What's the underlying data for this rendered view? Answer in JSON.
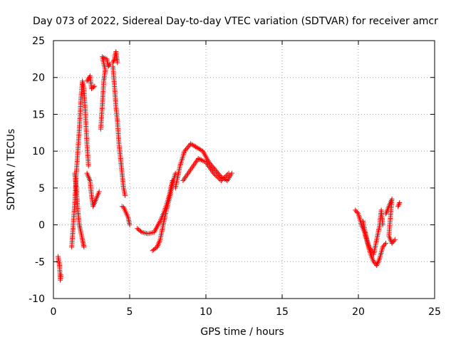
{
  "chart_data": {
    "type": "scatter",
    "title": "Day 073 of 2022, Sidereal Day-to-day VTEC variation (SDTVAR) for receiver amcr",
    "xlabel": "GPS time / hours",
    "ylabel": "SDTVAR / TECUs",
    "xlim": [
      0,
      25
    ],
    "ylim": [
      -10,
      25
    ],
    "xticks": [
      "0",
      "5",
      "10",
      "15",
      "20",
      "25"
    ],
    "yticks": [
      "-10",
      "-5",
      "0",
      "5",
      "10",
      "15",
      "20",
      "25"
    ],
    "grid": true,
    "marker": "+",
    "colors": {
      "series": "#ff0000",
      "grid": "#a0a0a0",
      "axes": "#000000"
    },
    "series": [
      {
        "name": "SDTVAR",
        "segments": [
          [
            [
              0.3,
              -4.3
            ],
            [
              0.4,
              -5.5
            ],
            [
              0.45,
              -7.5
            ],
            [
              0.5,
              -6.8
            ]
          ],
          [
            [
              1.2,
              -3.0
            ],
            [
              1.3,
              0.0
            ],
            [
              1.4,
              3.0
            ],
            [
              1.5,
              7.0
            ],
            [
              1.6,
              10.0
            ],
            [
              1.7,
              13.0
            ],
            [
              1.8,
              17.0
            ],
            [
              1.9,
              19.5
            ],
            [
              2.0,
              18.5
            ],
            [
              2.1,
              15.0
            ],
            [
              2.2,
              11.0
            ],
            [
              2.3,
              8.0
            ]
          ],
          [
            [
              1.4,
              7.0
            ],
            [
              1.5,
              5.0
            ],
            [
              1.6,
              2.0
            ],
            [
              1.7,
              0.0
            ],
            [
              1.8,
              -1.0
            ],
            [
              1.9,
              -2.0
            ],
            [
              2.0,
              -3.0
            ]
          ],
          [
            [
              2.2,
              7.0
            ],
            [
              2.4,
              6.0
            ],
            [
              2.5,
              4.0
            ],
            [
              2.6,
              2.5
            ],
            [
              2.8,
              3.5
            ],
            [
              3.0,
              4.5
            ]
          ],
          [
            [
              2.2,
              19.5
            ],
            [
              2.4,
              20.2
            ],
            [
              2.5,
              18.5
            ],
            [
              2.7,
              18.8
            ]
          ],
          [
            [
              3.1,
              13.0
            ],
            [
              3.2,
              16.0
            ],
            [
              3.3,
              19.5
            ],
            [
              3.4,
              21.0
            ],
            [
              3.2,
              22.8
            ],
            [
              3.5,
              22.5
            ],
            [
              3.6,
              21.5
            ],
            [
              3.7,
              21.8
            ]
          ],
          [
            [
              3.9,
              21.5
            ],
            [
              4.0,
              19.0
            ],
            [
              4.1,
              16.0
            ],
            [
              4.2,
              14.0
            ],
            [
              4.3,
              11.0
            ],
            [
              4.4,
              9.0
            ],
            [
              4.5,
              7.0
            ],
            [
              4.6,
              5.0
            ],
            [
              4.7,
              4.0
            ]
          ],
          [
            [
              3.9,
              22.0
            ],
            [
              4.0,
              22.5
            ],
            [
              4.1,
              23.5
            ],
            [
              4.2,
              22.0
            ]
          ],
          [
            [
              4.5,
              2.5
            ],
            [
              4.6,
              2.4
            ],
            [
              4.9,
              1.0
            ],
            [
              5.0,
              0.0
            ]
          ],
          [
            [
              5.5,
              -0.5
            ],
            [
              5.8,
              -1.0
            ],
            [
              6.2,
              -1.2
            ],
            [
              6.6,
              -1.0
            ],
            [
              7.0,
              0.5
            ],
            [
              7.3,
              2.0
            ],
            [
              7.6,
              4.0
            ],
            [
              7.8,
              6.0
            ]
          ],
          [
            [
              6.5,
              -3.5
            ],
            [
              6.8,
              -3.0
            ],
            [
              7.0,
              -2.0
            ],
            [
              7.2,
              0.0
            ],
            [
              7.4,
              2.0
            ],
            [
              7.6,
              3.5
            ],
            [
              7.8,
              5.5
            ],
            [
              8.0,
              7.0
            ]
          ],
          [
            [
              8.0,
              5.0
            ],
            [
              8.3,
              8.0
            ],
            [
              8.6,
              10.0
            ],
            [
              9.0,
              11.0
            ],
            [
              9.4,
              10.5
            ],
            [
              9.8,
              10.0
            ],
            [
              10.2,
              8.5
            ],
            [
              10.6,
              7.5
            ],
            [
              11.0,
              6.5
            ],
            [
              11.4,
              6.0
            ],
            [
              11.7,
              7.0
            ]
          ],
          [
            [
              8.5,
              6.0
            ],
            [
              9.0,
              7.5
            ],
            [
              9.5,
              9.0
            ],
            [
              10.0,
              8.5
            ],
            [
              10.5,
              7.0
            ],
            [
              11.0,
              6.0
            ],
            [
              11.5,
              7.0
            ]
          ],
          [
            [
              19.8,
              2.0
            ],
            [
              20.0,
              1.5
            ],
            [
              20.2,
              0.0
            ],
            [
              20.4,
              -1.0
            ],
            [
              20.6,
              -2.5
            ],
            [
              20.8,
              -4.0
            ],
            [
              21.0,
              -5.0
            ],
            [
              21.2,
              -5.5
            ],
            [
              21.4,
              -4.5
            ],
            [
              21.6,
              -3.0
            ],
            [
              21.8,
              -2.5
            ]
          ],
          [
            [
              20.3,
              0.5
            ],
            [
              20.5,
              -1.5
            ],
            [
              20.7,
              -3.0
            ],
            [
              21.0,
              -4.0
            ],
            [
              21.2,
              -2.0
            ],
            [
              21.4,
              0.0
            ],
            [
              21.5,
              2.0
            ],
            [
              21.6,
              0.0
            ]
          ],
          [
            [
              21.8,
              1.5
            ],
            [
              22.0,
              2.5
            ],
            [
              22.2,
              3.5
            ],
            [
              22.0,
              -1.5
            ],
            [
              22.2,
              -2.5
            ],
            [
              22.4,
              -2.0
            ]
          ],
          [
            [
              22.6,
              2.5
            ],
            [
              22.7,
              3.0
            ]
          ]
        ]
      }
    ]
  }
}
